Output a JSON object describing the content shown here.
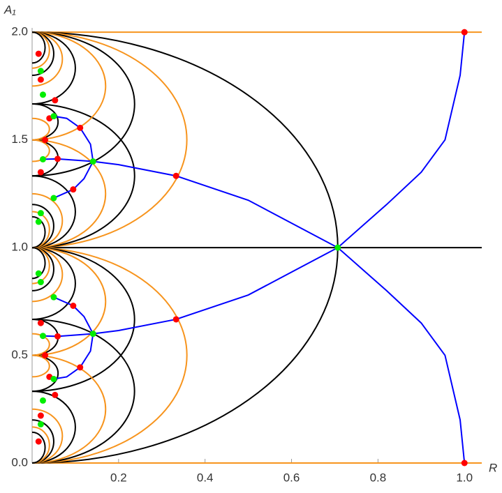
{
  "chart_data": {
    "type": "line",
    "x_label": "R",
    "y_label": "A₁",
    "xlim": [
      0,
      1.04
    ],
    "ylim": [
      0,
      2.02
    ],
    "xticks": [
      0.2,
      0.4,
      0.6,
      0.8,
      {
        "value": 1,
        "label": "1.0"
      }
    ],
    "yticks": [
      {
        "value": 0,
        "label": "0.0"
      },
      0.5,
      {
        "value": 1,
        "label": "1.0"
      },
      1.5,
      {
        "value": 2,
        "label": "2.0"
      }
    ],
    "hlines": [
      {
        "y": 0,
        "color": "#f7941d"
      },
      {
        "y": 1,
        "color": "#000000"
      },
      {
        "y": 2,
        "color": "#f7941d"
      }
    ],
    "arcs": [
      {
        "y0": 0,
        "y1": 2,
        "r": 0.707,
        "color": "#000000"
      },
      {
        "y0": 1,
        "y1": 2,
        "r": 0.358,
        "color": "#f7941d"
      },
      {
        "y0": 1.333,
        "y1": 2,
        "r": 0.237,
        "color": "#000000"
      },
      {
        "y0": 1,
        "y1": 1.667,
        "r": 0.237,
        "color": "#000000"
      },
      {
        "y0": 1.5,
        "y1": 2,
        "r": 0.17,
        "color": "#f7941d"
      },
      {
        "y0": 1,
        "y1": 1.5,
        "r": 0.17,
        "color": "#f7941d"
      },
      {
        "y0": 1.667,
        "y1": 2,
        "r": 0.1,
        "color": "#000000"
      },
      {
        "y0": 1,
        "y1": 1.333,
        "r": 0.1,
        "color": "#000000"
      },
      {
        "y0": 1.75,
        "y1": 2,
        "r": 0.07,
        "color": "#f7941d"
      },
      {
        "y0": 1,
        "y1": 1.25,
        "r": 0.07,
        "color": "#f7941d"
      },
      {
        "y0": 1.8,
        "y1": 2,
        "r": 0.05,
        "color": "#000000"
      },
      {
        "y0": 1,
        "y1": 1.2,
        "r": 0.05,
        "color": "#000000"
      },
      {
        "y0": 1.833,
        "y1": 2,
        "r": 0.04,
        "color": "#f7941d"
      },
      {
        "y0": 1,
        "y1": 1.167,
        "r": 0.04,
        "color": "#f7941d"
      },
      {
        "y0": 1.857,
        "y1": 2,
        "r": 0.03,
        "color": "#000000"
      },
      {
        "y0": 1,
        "y1": 1.143,
        "r": 0.03,
        "color": "#000000"
      },
      {
        "y0": 1.333,
        "y1": 1.5,
        "r": 0.06,
        "color": "#000000"
      },
      {
        "y0": 1.5,
        "y1": 1.667,
        "r": 0.06,
        "color": "#000000"
      },
      {
        "y0": 1.4,
        "y1": 1.5,
        "r": 0.04,
        "color": "#f7941d"
      },
      {
        "y0": 1.5,
        "y1": 1.6,
        "r": 0.04,
        "color": "#f7941d"
      },
      {
        "y0": 0,
        "y1": 1,
        "r": 0.358,
        "color": "#f7941d"
      },
      {
        "y0": 0,
        "y1": 0.667,
        "r": 0.237,
        "color": "#000000"
      },
      {
        "y0": 0.333,
        "y1": 1,
        "r": 0.237,
        "color": "#000000"
      },
      {
        "y0": 0,
        "y1": 0.5,
        "r": 0.17,
        "color": "#f7941d"
      },
      {
        "y0": 0.5,
        "y1": 1,
        "r": 0.17,
        "color": "#f7941d"
      },
      {
        "y0": 0,
        "y1": 0.333,
        "r": 0.1,
        "color": "#000000"
      },
      {
        "y0": 0.667,
        "y1": 1,
        "r": 0.1,
        "color": "#000000"
      },
      {
        "y0": 0,
        "y1": 0.25,
        "r": 0.07,
        "color": "#f7941d"
      },
      {
        "y0": 0.75,
        "y1": 1,
        "r": 0.07,
        "color": "#f7941d"
      },
      {
        "y0": 0,
        "y1": 0.2,
        "r": 0.05,
        "color": "#000000"
      },
      {
        "y0": 0.8,
        "y1": 1,
        "r": 0.05,
        "color": "#000000"
      },
      {
        "y0": 0,
        "y1": 0.167,
        "r": 0.04,
        "color": "#f7941d"
      },
      {
        "y0": 0.833,
        "y1": 1,
        "r": 0.04,
        "color": "#f7941d"
      },
      {
        "y0": 0,
        "y1": 0.143,
        "r": 0.03,
        "color": "#000000"
      },
      {
        "y0": 0.857,
        "y1": 1,
        "r": 0.03,
        "color": "#000000"
      },
      {
        "y0": 0.5,
        "y1": 0.667,
        "r": 0.06,
        "color": "#000000"
      },
      {
        "y0": 0.333,
        "y1": 0.5,
        "r": 0.06,
        "color": "#000000"
      },
      {
        "y0": 0.5,
        "y1": 0.6,
        "r": 0.04,
        "color": "#f7941d"
      },
      {
        "y0": 0.4,
        "y1": 0.5,
        "r": 0.04,
        "color": "#f7941d"
      }
    ],
    "series": [
      {
        "color": "#0000ff",
        "x": [
          1,
          0.99,
          0.955,
          0.9,
          0.82,
          0.707,
          0.82,
          0.9,
          0.955,
          0.99,
          1
        ],
        "y": [
          2,
          1.8,
          1.5,
          1.35,
          1.2,
          1,
          0.8,
          0.65,
          0.5,
          0.2,
          0
        ]
      },
      {
        "color": "#0000ff",
        "x": [
          0.707,
          0.5,
          0.333,
          0.2,
          0.141,
          0.059,
          0.025
        ],
        "y": [
          1,
          1.22,
          1.333,
          1.385,
          1.4,
          1.412,
          1.41
        ]
      },
      {
        "color": "#0000ff",
        "x": [
          0.141,
          0.135,
          0.111,
          0.08,
          0.05
        ],
        "y": [
          1.4,
          1.48,
          1.556,
          1.6,
          1.61
        ]
      },
      {
        "color": "#0000ff",
        "x": [
          0.141,
          0.12,
          0.095,
          0.05
        ],
        "y": [
          1.4,
          1.32,
          1.27,
          1.23
        ]
      },
      {
        "color": "#0000ff",
        "x": [
          0.707,
          0.5,
          0.333,
          0.2,
          0.141,
          0.059,
          0.025
        ],
        "y": [
          1,
          0.78,
          0.667,
          0.615,
          0.6,
          0.588,
          0.59
        ]
      },
      {
        "color": "#0000ff",
        "x": [
          0.141,
          0.135,
          0.111,
          0.08,
          0.05
        ],
        "y": [
          0.6,
          0.52,
          0.444,
          0.4,
          0.39
        ]
      },
      {
        "color": "#0000ff",
        "x": [
          0.141,
          0.12,
          0.095,
          0.05
        ],
        "y": [
          0.6,
          0.68,
          0.73,
          0.77
        ]
      }
    ],
    "markers": [
      {
        "color": "#ff0000",
        "x": [
          1,
          1,
          0.333,
          0.333,
          0.111,
          0.111,
          0.059,
          0.059,
          0.095,
          0.095,
          0.053,
          0.053,
          0.04,
          0.04,
          0.03,
          0.03,
          0.02,
          0.02,
          0.02,
          0.02,
          0.015,
          0.015
        ],
        "y": [
          2,
          0,
          1.333,
          0.667,
          1.556,
          0.444,
          1.412,
          0.588,
          1.27,
          0.73,
          1.684,
          0.316,
          1.6,
          0.4,
          1.5,
          0.5,
          1.78,
          0.22,
          1.35,
          0.65,
          1.9,
          0.1
        ]
      },
      {
        "color": "#00ee00",
        "x": [
          0.707,
          0.141,
          0.141,
          0.05,
          0.05,
          0.05,
          0.05,
          0.025,
          0.025,
          0.025,
          0.025,
          0.02,
          0.02,
          0.02,
          0.02,
          0.015,
          0.015
        ],
        "y": [
          1,
          1.4,
          0.6,
          1.61,
          1.23,
          0.39,
          0.77,
          1.71,
          1.41,
          0.29,
          0.59,
          1.82,
          1.16,
          0.18,
          0.84,
          1.12,
          0.88
        ]
      }
    ]
  }
}
